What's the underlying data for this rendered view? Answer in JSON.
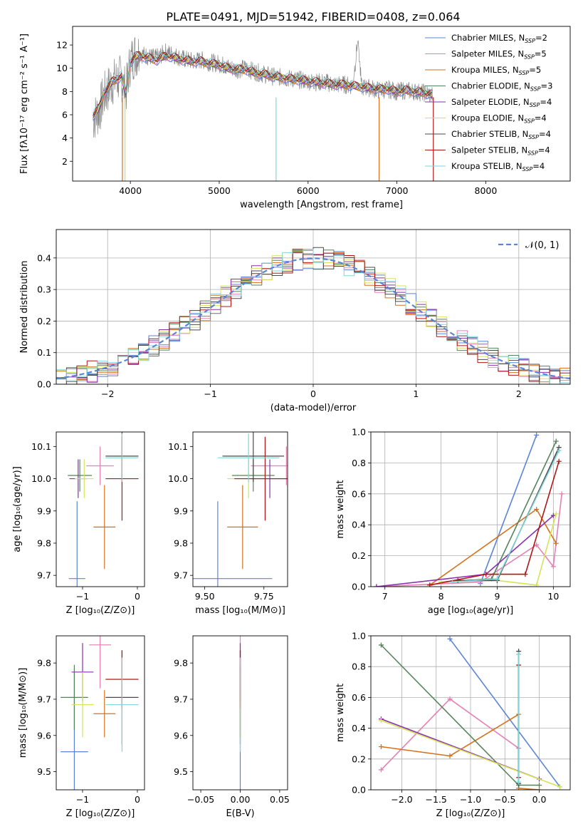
{
  "figure": {
    "title": "PLATE=0491, MJD=51942, FIBERID=0408, z=0.064"
  },
  "colors": {
    "Chabrier MILES": "#5b84d6",
    "Salpeter MILES": "#e580b4",
    "Kroupa MILES": "#d4711d",
    "Chabrier ELODIE": "#56845a",
    "Salpeter ELODIE": "#8a2fb0",
    "Kroupa ELODIE": "#d5e25a",
    "Chabrier STELIB": "#4a4a4a",
    "Salpeter STELIB": "#b01616",
    "Kroupa STELIB": "#7fd5d9",
    "data": "#888888",
    "normal": "#5b84d6",
    "grid": "#b0b0b0"
  },
  "legend_main": [
    {
      "model": "Chabrier MILES",
      "label": "Chabrier MILES, N",
      "sub": "SSP",
      "n": "=2"
    },
    {
      "model": "Salpeter MILES",
      "label": "Salpeter MILES, N",
      "sub": "SSP",
      "n": "=5"
    },
    {
      "model": "Kroupa MILES",
      "label": "Kroupa MILES, N",
      "sub": "SSP",
      "n": "=5"
    },
    {
      "model": "Chabrier ELODIE",
      "label": "Chabrier ELODIE, N",
      "sub": "SSP",
      "n": "=3"
    },
    {
      "model": "Salpeter ELODIE",
      "label": "Salpeter ELODIE, N",
      "sub": "SSP",
      "n": "=4"
    },
    {
      "model": "Kroupa ELODIE",
      "label": "Kroupa ELODIE, N",
      "sub": "SSP",
      "n": "=4"
    },
    {
      "model": "Chabrier STELIB",
      "label": "Chabrier STELIB, N",
      "sub": "SSP",
      "n": "=4"
    },
    {
      "model": "Salpeter STELIB",
      "label": "Salpeter STELIB, N",
      "sub": "SSP",
      "n": "=4"
    },
    {
      "model": "Kroupa STELIB",
      "label": "Kroupa STELIB, N",
      "sub": "SSP",
      "n": "=4"
    }
  ],
  "chart_data": [
    {
      "id": "spectrum",
      "type": "line",
      "xlabel": "wavelength [Angstrom, rest frame]",
      "ylabel": "Flux [fλ10⁻¹⁷ erg cm⁻² s⁻¹ A⁻¹]",
      "xlim": [
        3350,
        8950
      ],
      "ylim": [
        0.3,
        13.6
      ],
      "xticks": [
        4000,
        5000,
        6000,
        7000,
        8000
      ],
      "yticks": [
        2,
        4,
        6,
        8,
        10,
        12
      ],
      "data_series": {
        "name": "data",
        "x": [
          3580,
          3650,
          3700,
          3800,
          3900,
          3950,
          4000,
          4050,
          4100,
          4200,
          4300,
          4400,
          4500,
          4600,
          4700,
          4800,
          4900,
          5000,
          5100,
          5200,
          5300,
          5400,
          5500,
          5600,
          5700,
          5800,
          5900,
          6000,
          6100,
          6200,
          6300,
          6400,
          6500,
          6563,
          6600,
          6700,
          6800,
          6900,
          7000,
          7100,
          7200,
          7300,
          7400
        ],
        "y": [
          5.6,
          6.3,
          7.6,
          8.8,
          9.2,
          7.9,
          10.6,
          11.2,
          11.3,
          11.0,
          10.9,
          11.4,
          11.1,
          10.8,
          10.6,
          10.7,
          10.5,
          10.4,
          10.1,
          9.9,
          10.0,
          9.7,
          9.5,
          9.3,
          9.2,
          9.1,
          9.0,
          8.9,
          8.8,
          8.8,
          8.6,
          8.6,
          8.5,
          12.5,
          8.4,
          8.3,
          8.1,
          8.2,
          8.0,
          8.1,
          8.0,
          7.9,
          7.7
        ]
      },
      "model_curve": {
        "x": [
          3580,
          3650,
          3700,
          3800,
          3900,
          3950,
          4000,
          4050,
          4100,
          4200,
          4300,
          4400,
          4500,
          4600,
          4700,
          4800,
          4900,
          5000,
          5100,
          5200,
          5300,
          5400,
          5500,
          5600,
          5700,
          5800,
          5900,
          6000,
          6100,
          6200,
          6300,
          6400,
          6500,
          6600,
          6700,
          6800,
          6900,
          7000,
          7100,
          7200,
          7300,
          7400
        ],
        "y": [
          5.9,
          6.6,
          7.8,
          8.9,
          9.3,
          7.8,
          10.5,
          11.0,
          11.1,
          10.9,
          10.7,
          11.1,
          10.9,
          10.7,
          10.6,
          10.6,
          10.4,
          10.3,
          10.0,
          9.9,
          9.9,
          9.6,
          9.5,
          9.3,
          9.2,
          9.1,
          9.0,
          8.9,
          8.8,
          8.7,
          8.6,
          8.6,
          8.5,
          8.4,
          8.3,
          8.2,
          8.2,
          8.0,
          8.1,
          8.0,
          7.9,
          7.7
        ]
      },
      "dropouts": [
        {
          "x": 3910,
          "model": "Kroupa MILES"
        },
        {
          "x": 3940,
          "model": "Kroupa ELODIE"
        },
        {
          "x": 5640,
          "model": "Kroupa STELIB"
        },
        {
          "x": 6800,
          "model": "Kroupa MILES"
        },
        {
          "x": 7410,
          "model": "Salpeter STELIB"
        }
      ]
    },
    {
      "id": "residuals",
      "type": "step",
      "xlabel": "(data-model)/error",
      "ylabel": "Normed distribution",
      "xlim": [
        -2.5,
        2.5
      ],
      "ylim": [
        0,
        0.49
      ],
      "xticks": [
        -2,
        -1,
        0,
        1,
        2
      ],
      "yticks": [
        0.0,
        0.1,
        0.2,
        0.3,
        0.4
      ],
      "legend": "𝒩(0, 1)",
      "normal": {
        "mean": 0,
        "sd": 1
      },
      "bin_width": 0.1,
      "bin_start": -2.5
    },
    {
      "id": "age_vs_Z",
      "type": "errorbar",
      "xlabel": "Z [log₁₀(Z/Z⊙)]",
      "ylabel": "age  [log₁₀(age/yr)]",
      "xlim": [
        -1.48,
        0.13
      ],
      "ylim": [
        9.665,
        10.145
      ],
      "xticks": [
        -1,
        0
      ],
      "yticks": [
        9.7,
        9.8,
        9.9,
        10.0,
        10.1
      ],
      "points": [
        {
          "model": "Chabrier MILES",
          "x": -1.1,
          "xerr": 0.15,
          "y": 9.69,
          "yerr": 0.24
        },
        {
          "model": "Salpeter MILES",
          "x": -0.68,
          "xerr": 0.25,
          "y": 10.04,
          "yerr": 0.06
        },
        {
          "model": "Kroupa MILES",
          "x": -0.6,
          "xerr": 0.2,
          "y": 9.85,
          "yerr": 0.13
        },
        {
          "model": "Chabrier ELODIE",
          "x": -1.05,
          "xerr": 0.22,
          "y": 10.01,
          "yerr": 0.05
        },
        {
          "model": "Salpeter ELODIE",
          "x": -1.08,
          "xerr": 0.16,
          "y": 10.0,
          "yerr": 0.06
        },
        {
          "model": "Kroupa ELODIE",
          "x": -0.97,
          "xerr": 0.17,
          "y": 10.0,
          "yerr": 0.06
        },
        {
          "model": "Chabrier STELIB",
          "x": -0.28,
          "xerr": 0.3,
          "y": 10.07,
          "yerr": 0.08
        },
        {
          "model": "Salpeter STELIB",
          "x": -0.28,
          "xerr": 0.3,
          "y": 10.0,
          "yerr": 0.13
        },
        {
          "model": "Kroupa STELIB",
          "x": -0.28,
          "xerr": 0.3,
          "y": 10.065,
          "yerr": 0.075
        }
      ]
    },
    {
      "id": "age_vs_mass",
      "type": "errorbar",
      "xlabel": "mass [log₁₀(M/M⊙)]",
      "ylabel": "",
      "xlim": [
        9.45,
        9.85
      ],
      "ylim": [
        9.665,
        10.145
      ],
      "xticks": [
        9.5,
        9.75
      ],
      "xtick_labels": [
        "9.50",
        "9.75"
      ],
      "yticks": [
        9.7,
        9.8,
        9.9,
        10.0,
        10.1
      ],
      "points": [
        {
          "model": "Chabrier MILES",
          "x": 9.555,
          "xerr": 0.23,
          "y": 9.69,
          "yerr": 0.24
        },
        {
          "model": "Salpeter MILES",
          "x": 9.845,
          "xerr": 0.15,
          "y": 10.04,
          "yerr": 0.06
        },
        {
          "model": "Kroupa MILES",
          "x": 9.66,
          "xerr": 0.065,
          "y": 9.85,
          "yerr": 0.13
        },
        {
          "model": "Chabrier ELODIE",
          "x": 9.705,
          "xerr": 0.09,
          "y": 10.01,
          "yerr": 0.05
        },
        {
          "model": "Salpeter ELODIE",
          "x": 9.775,
          "xerr": 0.08,
          "y": 10.0,
          "yerr": 0.06
        },
        {
          "model": "Kroupa ELODIE",
          "x": 9.685,
          "xerr": 0.09,
          "y": 10.0,
          "yerr": 0.06
        },
        {
          "model": "Chabrier STELIB",
          "x": 9.705,
          "xerr": 0.13,
          "y": 10.07,
          "yerr": 0.08
        },
        {
          "model": "Salpeter STELIB",
          "x": 9.755,
          "xerr": 0.13,
          "y": 10.0,
          "yerr": 0.13
        },
        {
          "model": "Kroupa STELIB",
          "x": 9.685,
          "xerr": 0.13,
          "y": 10.065,
          "yerr": 0.075
        }
      ]
    },
    {
      "id": "weight_vs_age",
      "type": "line",
      "xlabel": "age  [log₁₀(age/yr)]",
      "ylabel": "mass weight",
      "xlim": [
        6.75,
        10.3
      ],
      "ylim": [
        0,
        1
      ],
      "xticks": [
        7,
        8,
        9,
        10
      ],
      "yticks": [
        0.0,
        0.2,
        0.4,
        0.6,
        0.8,
        1.0
      ],
      "series": [
        {
          "model": "Chabrier MILES",
          "x": [
            8.7,
            9.7
          ],
          "y": [
            0.02,
            0.98
          ]
        },
        {
          "model": "Salpeter MILES",
          "x": [
            6.85,
            8.7,
            9.7,
            10.0,
            10.15
          ],
          "y": [
            0.0,
            0.03,
            0.27,
            0.13,
            0.6
          ]
        },
        {
          "model": "Kroupa MILES",
          "x": [
            7.8,
            9.7,
            10.05
          ],
          "y": [
            0.01,
            0.5,
            0.28
          ]
        },
        {
          "model": "Chabrier ELODIE",
          "x": [
            8.0,
            8.9,
            10.05
          ],
          "y": [
            0.03,
            0.05,
            0.94
          ]
        },
        {
          "model": "Salpeter ELODIE",
          "x": [
            6.85,
            8.8,
            10.0
          ],
          "y": [
            0.0,
            0.08,
            0.46
          ]
        },
        {
          "model": "Kroupa ELODIE",
          "x": [
            8.0,
            9.0,
            9.7,
            10.05
          ],
          "y": [
            0.03,
            0.04,
            0.01,
            0.47
          ]
        },
        {
          "model": "Chabrier STELIB",
          "x": [
            8.3,
            9.0,
            10.1
          ],
          "y": [
            0.04,
            0.04,
            0.9
          ]
        },
        {
          "model": "Salpeter STELIB",
          "x": [
            7.8,
            8.8,
            9.5,
            10.1
          ],
          "y": [
            0.01,
            0.08,
            0.08,
            0.81
          ]
        },
        {
          "model": "Kroupa STELIB",
          "x": [
            8.2,
            9.0,
            10.1
          ],
          "y": [
            0.03,
            0.05,
            0.88
          ]
        }
      ]
    },
    {
      "id": "mass_vs_Z",
      "type": "errorbar",
      "xlabel": "Z [log₁₀(Z/Z⊙)]",
      "ylabel": "mass [log₁₀(M/M⊙)]",
      "xlim": [
        -1.48,
        0.13
      ],
      "ylim": [
        9.45,
        9.875
      ],
      "xticks": [
        -1,
        0
      ],
      "yticks": [
        9.5,
        9.6,
        9.7,
        9.8
      ],
      "points": [
        {
          "model": "Chabrier MILES",
          "x": -1.15,
          "xerr": 0.25,
          "y": 9.555,
          "yerr": 0.23
        },
        {
          "model": "Salpeter MILES",
          "x": -0.68,
          "xerr": 0.2,
          "y": 9.85,
          "yerr": 0.12
        },
        {
          "model": "Kroupa MILES",
          "x": -0.6,
          "xerr": 0.2,
          "y": 9.66,
          "yerr": 0.065
        },
        {
          "model": "Chabrier ELODIE",
          "x": -1.15,
          "xerr": 0.25,
          "y": 9.705,
          "yerr": 0.09
        },
        {
          "model": "Salpeter ELODIE",
          "x": -1.0,
          "xerr": 0.2,
          "y": 9.775,
          "yerr": 0.08
        },
        {
          "model": "Kroupa ELODIE",
          "x": -1.0,
          "xerr": 0.2,
          "y": 9.685,
          "yerr": 0.09
        },
        {
          "model": "Chabrier STELIB",
          "x": -0.28,
          "xerr": 0.3,
          "y": 9.705,
          "yerr": 0.13
        },
        {
          "model": "Salpeter STELIB",
          "x": -0.28,
          "xerr": 0.3,
          "y": 9.755,
          "yerr": 0.08
        },
        {
          "model": "Kroupa STELIB",
          "x": -0.28,
          "xerr": 0.3,
          "y": 9.685,
          "yerr": 0.13
        }
      ]
    },
    {
      "id": "mass_vs_EBV",
      "type": "errorbar",
      "xlabel": "E(B-V)",
      "ylabel": "",
      "xlim": [
        -0.06,
        0.06
      ],
      "ylim": [
        9.45,
        9.875
      ],
      "xticks": [
        -0.05,
        0.0,
        0.05
      ],
      "xtick_labels": [
        "−0.05",
        "0.00",
        "0.05"
      ],
      "yticks": [
        9.5,
        9.6,
        9.7,
        9.8
      ],
      "points": [
        {
          "model": "Chabrier MILES",
          "x": 0,
          "xerr": 0,
          "y": 9.555,
          "yerr": 0.23
        },
        {
          "model": "Salpeter MILES",
          "x": 0,
          "xerr": 0,
          "y": 9.85,
          "yerr": 0.12
        },
        {
          "model": "Kroupa MILES",
          "x": 0,
          "xerr": 0,
          "y": 9.66,
          "yerr": 0.065
        },
        {
          "model": "Chabrier ELODIE",
          "x": 0,
          "xerr": 0,
          "y": 9.705,
          "yerr": 0.09
        },
        {
          "model": "Salpeter ELODIE",
          "x": 0,
          "xerr": 0,
          "y": 9.775,
          "yerr": 0.08
        },
        {
          "model": "Kroupa ELODIE",
          "x": 0,
          "xerr": 0,
          "y": 9.685,
          "yerr": 0.09
        },
        {
          "model": "Chabrier STELIB",
          "x": 0,
          "xerr": 0,
          "y": 9.705,
          "yerr": 0.13
        },
        {
          "model": "Salpeter STELIB",
          "x": 0,
          "xerr": 0,
          "y": 9.755,
          "yerr": 0.08
        },
        {
          "model": "Kroupa STELIB",
          "x": 0,
          "xerr": 0,
          "y": 9.685,
          "yerr": 0.13
        }
      ]
    },
    {
      "id": "weight_vs_Z",
      "type": "line",
      "xlabel": "Z [log₁₀(Z/Z⊙)]",
      "ylabel": "mass weight",
      "xlim": [
        -2.45,
        0.45
      ],
      "ylim": [
        0,
        1
      ],
      "xticks": [
        -2.0,
        -1.5,
        -1.0,
        -0.5,
        0.0
      ],
      "xtick_labels": [
        "−2.0",
        "−1.5",
        "−1.0",
        "−0.5",
        "0.0"
      ],
      "yticks": [
        0.0,
        0.2,
        0.4,
        0.6,
        0.8,
        1.0
      ],
      "series": [
        {
          "model": "Chabrier MILES",
          "x": [
            -1.3,
            0.3
          ],
          "y": [
            0.98,
            0.02
          ]
        },
        {
          "model": "Salpeter MILES",
          "x": [
            -2.3,
            -1.3,
            -0.3
          ],
          "y": [
            0.13,
            0.59,
            0.27
          ]
        },
        {
          "model": "Kroupa MILES",
          "x": [
            -2.3,
            -1.3,
            -0.3,
            -0.3,
            0.0
          ],
          "y": [
            0.28,
            0.22,
            0.49,
            0.01,
            0.0
          ]
        },
        {
          "model": "Chabrier ELODIE",
          "x": [
            -2.3,
            -0.3,
            0.0
          ],
          "y": [
            0.94,
            0.03,
            0.03
          ]
        },
        {
          "model": "Salpeter ELODIE",
          "x": [
            -2.3,
            0.0
          ],
          "y": [
            0.46,
            0.07
          ]
        },
        {
          "model": "Kroupa ELODIE",
          "x": [
            -2.3,
            0.3
          ],
          "y": [
            0.45,
            0.02
          ]
        },
        {
          "model": "Chabrier STELIB",
          "x": [
            -0.3,
            -0.3
          ],
          "y": [
            0.9,
            0.04
          ]
        },
        {
          "model": "Salpeter STELIB",
          "x": [
            -0.3,
            -0.3
          ],
          "y": [
            0.81,
            0.08
          ]
        },
        {
          "model": "Kroupa STELIB",
          "x": [
            -0.3,
            -0.3
          ],
          "y": [
            0.88,
            0.05
          ]
        }
      ]
    }
  ]
}
